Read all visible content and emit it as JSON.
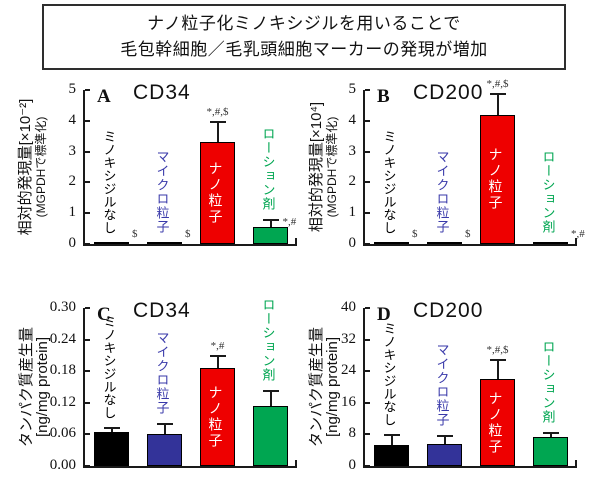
{
  "title_box": {
    "line1": "ナノ粒子化ミノキシジルを用いることで",
    "line2": "毛包幹細胞／毛乳頭細胞マーカーの発現が増加"
  },
  "chart_data": [
    {
      "panel": "A",
      "type": "bar",
      "title": "CD34",
      "ylabel": "相対的発現量[×10⁻²]",
      "ylabel_sub": "(MGPDHで標準化)",
      "ylim": [
        0,
        5
      ],
      "yticks": [
        "5",
        "4",
        "3",
        "2",
        "1",
        "0"
      ],
      "categories": [
        "ミノキシジルなし",
        "マイクロ粒子",
        "ナノ粒子",
        "ローション剤"
      ],
      "values": [
        0.03,
        0.03,
        3.3,
        0.55
      ],
      "errors_plus": [
        0,
        0,
        0.7,
        0.25
      ],
      "bar_colors": [
        "#000000",
        "#333399",
        "#ee0000",
        "#00a651"
      ],
      "label_colors": [
        "#000000",
        "#3a3aaa",
        "#ffffff",
        "#00a651"
      ],
      "label_placement": [
        "above",
        "above",
        "inside",
        "above"
      ],
      "significance": [
        {
          "text": "$",
          "pos": "base-right"
        },
        {
          "text": "$",
          "pos": "base-right"
        },
        {
          "text": "*,#,$",
          "pos": "above-err"
        },
        {
          "text": "*,#",
          "pos": "err-right"
        }
      ]
    },
    {
      "panel": "B",
      "type": "bar",
      "title": "CD200",
      "ylabel": "相対的発現量[×10⁴]",
      "ylabel_sub": "(MGPDHで標準化)",
      "ylim": [
        0,
        5
      ],
      "yticks": [
        "5",
        "4",
        "3",
        "2",
        "1",
        "0"
      ],
      "categories": [
        "ミノキシジルなし",
        "マイクロ粒子",
        "ナノ粒子",
        "ローション剤"
      ],
      "values": [
        0.03,
        0.03,
        4.2,
        0.06
      ],
      "errors_plus": [
        0,
        0,
        0.7,
        0
      ],
      "bar_colors": [
        "#000000",
        "#333399",
        "#ee0000",
        "#00a651"
      ],
      "label_colors": [
        "#000000",
        "#3a3aaa",
        "#ffffff",
        "#00a651"
      ],
      "label_placement": [
        "above",
        "above",
        "inside",
        "above"
      ],
      "significance": [
        {
          "text": "$",
          "pos": "base-right"
        },
        {
          "text": "$",
          "pos": "base-right"
        },
        {
          "text": "*,#,$",
          "pos": "above-err"
        },
        {
          "text": "*,#",
          "pos": "base-right"
        }
      ]
    },
    {
      "panel": "C",
      "type": "bar",
      "title": "CD34",
      "ylabel": "タンパク質産生量",
      "ylabel_sub": "[ng/mg protein]",
      "ylim": [
        0,
        0.3
      ],
      "yticks": [
        "0.30",
        "0.24",
        "0.18",
        "0.12",
        "0.06",
        "0.00"
      ],
      "categories": [
        "ミノキシジルなし",
        "マイクロ粒子",
        "ナノ粒子",
        "ローション剤"
      ],
      "values": [
        0.065,
        0.061,
        0.186,
        0.114
      ],
      "errors_plus": [
        0.01,
        0.021,
        0.025,
        0.03
      ],
      "bar_colors": [
        "#000000",
        "#333399",
        "#ee0000",
        "#00a651"
      ],
      "label_colors": [
        "#000000",
        "#3a3aaa",
        "#ffffff",
        "#00a651"
      ],
      "label_placement": [
        "above",
        "above",
        "inside",
        "above"
      ],
      "significance": [
        null,
        null,
        {
          "text": "*,#",
          "pos": "above-err"
        },
        null
      ]
    },
    {
      "panel": "D",
      "type": "bar",
      "title": "CD200",
      "ylabel": "タンパク質産生量",
      "ylabel_sub": "[ng/mg protein]",
      "ylim": [
        0,
        40
      ],
      "yticks": [
        "40",
        "32",
        "24",
        "16",
        "8",
        "0"
      ],
      "categories": [
        "ミノキシジルなし",
        "マイクロ粒子",
        "ナノ粒子",
        "ローション剤"
      ],
      "values": [
        5.4,
        5.6,
        22.0,
        7.3
      ],
      "errors_plus": [
        2.6,
        2.2,
        5.0,
        1.3
      ],
      "bar_colors": [
        "#000000",
        "#333399",
        "#ee0000",
        "#00a651"
      ],
      "label_colors": [
        "#000000",
        "#3a3aaa",
        "#ffffff",
        "#00a651"
      ],
      "label_placement": [
        "above",
        "above",
        "inside",
        "above"
      ],
      "significance": [
        null,
        null,
        {
          "text": "*,#,$",
          "pos": "above-err"
        },
        null
      ]
    }
  ]
}
